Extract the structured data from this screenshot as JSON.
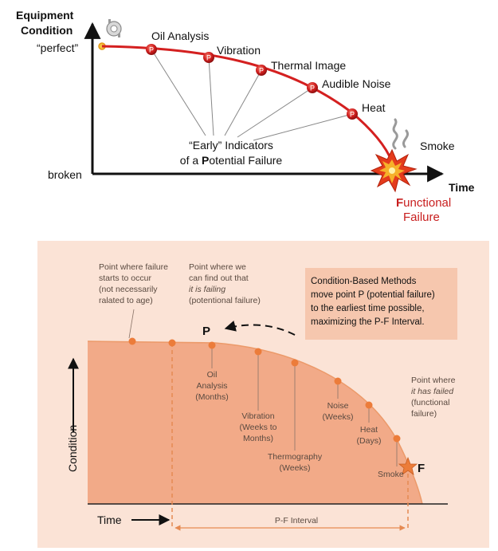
{
  "top_diagram": {
    "y_label_line1": "Equipment",
    "y_label_line2": "Condition",
    "perfect": "“perfect”",
    "broken": "broken",
    "time": "Time",
    "smoke": "Smoke",
    "functional_line1": "F",
    "functional_line1_rest": "unctional",
    "functional_line2": "Failure",
    "marker_letter": "P",
    "indicators": [
      "Oil Analysis",
      "Vibration",
      "Thermal Image",
      "Audible Noise",
      "Heat"
    ],
    "early_line1": "“Early” Indicators",
    "early_line2_a": "of a ",
    "early_line2_b": "P",
    "early_line2_c": "otential Failure"
  },
  "bottom_diagram": {
    "failure_start": [
      "Point where failure",
      "starts to occur",
      "(not necessarily",
      "ralated to age)"
    ],
    "find_out": [
      "Point where we",
      "can find out that",
      "it is failing",
      "(potentional failure)"
    ],
    "callout": [
      "Condition-Based Methods",
      "move point P (potential failure)",
      "to the earliest time possible,",
      "maximizing the P-F Interval."
    ],
    "p_label": "P",
    "f_label": "F",
    "oil": [
      "Oil",
      "Analysis",
      "(Months)"
    ],
    "vibration": [
      "Vibration",
      "(Weeks to",
      "Months)"
    ],
    "thermography": [
      "Thermography",
      "(Weeks)"
    ],
    "noise": [
      "Noise",
      "(Weeks)"
    ],
    "heat": [
      "Heat",
      "(Days)"
    ],
    "smoke": "Smoke",
    "has_failed": [
      "Point where",
      "it has failed",
      "(functional",
      "failure)"
    ],
    "condition": "Condition",
    "time": "Time",
    "pf_interval": "P-F Interval"
  },
  "colors": {
    "curve_red": "#d42020",
    "bottom_bg": "#fbe3d6",
    "bottom_fill": "#f2aa88",
    "dot_orange": "#ec7c3a",
    "dash_orange": "#e58a52",
    "callout_bg": "#f6c7ae"
  }
}
